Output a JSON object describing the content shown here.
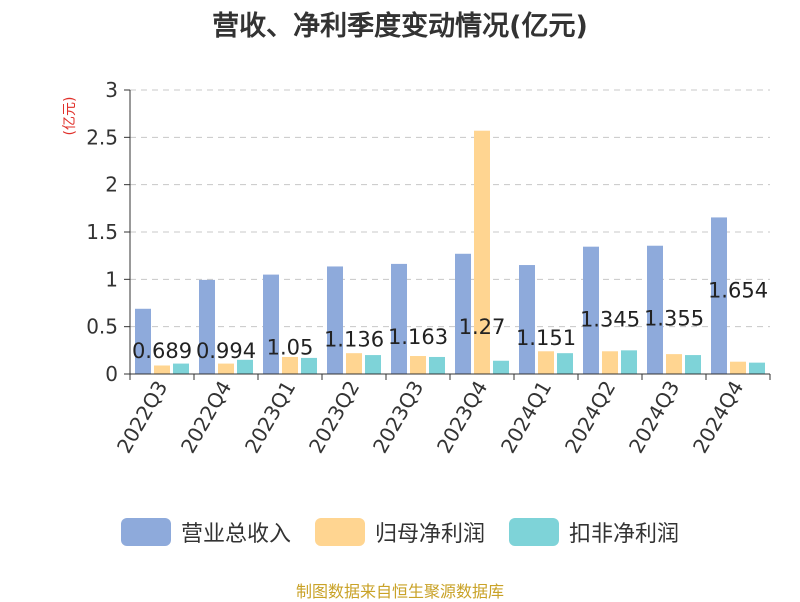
{
  "chart_data": {
    "type": "bar",
    "title": "营收、净利季度变动情况(亿元)",
    "ylabel": "(亿元)",
    "xlabel": "",
    "categories": [
      "2022Q3",
      "2022Q4",
      "2023Q1",
      "2023Q2",
      "2023Q3",
      "2023Q4",
      "2024Q1",
      "2024Q2",
      "2024Q3",
      "2024Q4"
    ],
    "ylim": [
      0,
      3
    ],
    "yticks": [
      0,
      0.5,
      1,
      1.5,
      2,
      2.5,
      3
    ],
    "grid": true,
    "legend": "bottom",
    "series": [
      {
        "name": "营业总收入",
        "color": "#8eaadb",
        "values": [
          0.689,
          0.994,
          1.05,
          1.136,
          1.163,
          1.27,
          1.151,
          1.345,
          1.355,
          1.654
        ]
      },
      {
        "name": "归母净利润",
        "color": "#ffd591",
        "values": [
          0.09,
          0.11,
          0.18,
          0.22,
          0.19,
          2.57,
          0.24,
          0.24,
          0.21,
          0.13
        ]
      },
      {
        "name": "扣非净利润",
        "color": "#7ed3d8",
        "values": [
          0.11,
          0.15,
          0.17,
          0.2,
          0.18,
          0.14,
          0.22,
          0.25,
          0.2,
          0.12
        ]
      }
    ],
    "data_labels": [
      "0.689",
      "0.994",
      "1.05",
      "1.136",
      "1.163",
      "1.27",
      "1.151",
      "1.345",
      "1.355",
      "1.654"
    ]
  },
  "source": "制图数据来自恒生聚源数据库"
}
